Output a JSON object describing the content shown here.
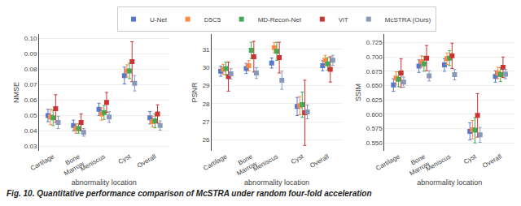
{
  "title": "Fig. 10. Quantitative performance comparison of McSTRA under random four-fold acceleration",
  "chart_data": [
    {
      "type": "scatter",
      "marker": "square",
      "grid": true,
      "legend": "top",
      "xlabel": "abnormality location",
      "ylabel": "NMSE",
      "categories": [
        "Cartilage",
        "Bone\nMarrow",
        "Meniscus",
        "Cyst",
        "Overall"
      ],
      "ylim": [
        0.027,
        0.103
      ],
      "yticks": [
        0.03,
        0.04,
        0.05,
        0.06,
        0.07,
        0.08,
        0.09,
        {
          "value": 0.1,
          "label": "0.10"
        }
      ],
      "series": [
        {
          "name": "U-Net",
          "color": "#5577cc",
          "values": [
            0.05,
            0.0435,
            0.054,
            0.076,
            0.0485
          ],
          "errors": [
            0.004,
            0.0035,
            0.004,
            0.0055,
            0.004
          ]
        },
        {
          "name": "D5C5",
          "color": "#ff8844",
          "values": [
            0.049,
            0.0415,
            0.051,
            0.079,
            0.046
          ],
          "errors": [
            0.005,
            0.003,
            0.004,
            0.004,
            0.0035
          ]
        },
        {
          "name": "MD-Recon-Net",
          "color": "#44aa55",
          "values": [
            0.0485,
            0.0415,
            0.052,
            0.079,
            0.0465
          ],
          "errors": [
            0.005,
            0.003,
            0.0045,
            0.005,
            0.0045
          ]
        },
        {
          "name": "ViT",
          "color": "#cc3333",
          "values": [
            0.0545,
            0.0455,
            0.0585,
            0.085,
            0.051
          ],
          "errors": [
            0.009,
            0.0055,
            0.0065,
            0.013,
            0.006
          ]
        },
        {
          "name": "McSTRA (Ours)",
          "color": "#8899bb",
          "values": [
            0.0455,
            0.039,
            0.049,
            0.071,
            0.0435
          ],
          "errors": [
            0.004,
            0.0025,
            0.0035,
            0.005,
            0.003
          ]
        }
      ]
    },
    {
      "type": "scatter",
      "marker": "square",
      "grid": true,
      "xlabel": "abnormality location",
      "ylabel": "PSNR",
      "categories": [
        "Cartilage",
        "Bone\nMarrow",
        "Meniscus",
        "Cyst",
        "Overall"
      ],
      "ylim": [
        25.4,
        31.85
      ],
      "yticks": [
        26,
        27,
        28,
        29,
        30,
        31
      ],
      "series": [
        {
          "name": "U-Net",
          "color": "#5577cc",
          "values": [
            29.8,
            29.95,
            30.25,
            27.85,
            30.1
          ],
          "errors": [
            0.28,
            0.28,
            0.28,
            0.5,
            0.28
          ]
        },
        {
          "name": "D5C5",
          "color": "#ff8844",
          "values": [
            29.9,
            30.1,
            31.1,
            27.9,
            30.4
          ],
          "errors": [
            0.28,
            0.28,
            0.28,
            0.5,
            0.28
          ]
        },
        {
          "name": "MD-Recon-Net",
          "color": "#44aa55",
          "values": [
            29.95,
            30.95,
            30.9,
            27.95,
            30.2
          ],
          "errors": [
            0.35,
            0.45,
            0.5,
            0.7,
            0.35
          ]
        },
        {
          "name": "ViT",
          "color": "#cc3333",
          "values": [
            29.5,
            30.6,
            30.55,
            27.5,
            29.9
          ],
          "errors": [
            0.8,
            0.85,
            0.85,
            1.8,
            0.7
          ]
        },
        {
          "name": "McSTRA (Ours)",
          "color": "#8899bb",
          "values": [
            29.65,
            29.7,
            29.3,
            27.55,
            30.4
          ],
          "errors": [
            0.28,
            0.3,
            0.5,
            0.38,
            0.28
          ]
        }
      ]
    },
    {
      "type": "scatter",
      "marker": "square",
      "grid": true,
      "xlabel": "abnormality location",
      "ylabel": "SSIM",
      "categories": [
        "Cartilage",
        "Bone\nMarrow",
        "Meniscus",
        "Cyst",
        "Overall"
      ],
      "ylim": [
        0.536,
        0.74
      ],
      "yticks": [
        {
          "value": 0.55,
          "label": "0.550"
        },
        0.575,
        {
          "value": 0.6,
          "label": "0.600"
        },
        0.625,
        {
          "value": 0.65,
          "label": "0.650"
        },
        0.675,
        {
          "value": 0.7,
          "label": "0.700"
        },
        0.725
      ],
      "series": [
        {
          "name": "U-Net",
          "color": "#5577cc",
          "values": [
            0.651,
            0.684,
            0.686,
            0.57,
            0.666
          ],
          "errors": [
            0.011,
            0.011,
            0.011,
            0.015,
            0.01
          ]
        },
        {
          "name": "D5C5",
          "color": "#ff8844",
          "values": [
            0.663,
            0.692,
            0.697,
            0.573,
            0.672
          ],
          "errors": [
            0.011,
            0.01,
            0.01,
            0.016,
            0.01
          ]
        },
        {
          "name": "MD-Recon-Net",
          "color": "#44aa55",
          "values": [
            0.661,
            0.688,
            0.698,
            0.572,
            0.669
          ],
          "errors": [
            0.013,
            0.013,
            0.013,
            0.022,
            0.012
          ]
        },
        {
          "name": "ViT",
          "color": "#cc3333",
          "values": [
            0.672,
            0.698,
            0.702,
            0.598,
            0.682
          ],
          "errors": [
            0.025,
            0.022,
            0.022,
            0.038,
            0.018
          ]
        },
        {
          "name": "McSTRA (Ours)",
          "color": "#8899bb",
          "values": [
            0.656,
            0.667,
            0.669,
            0.564,
            0.67
          ],
          "errors": [
            0.009,
            0.009,
            0.009,
            0.013,
            0.008
          ]
        }
      ]
    }
  ]
}
